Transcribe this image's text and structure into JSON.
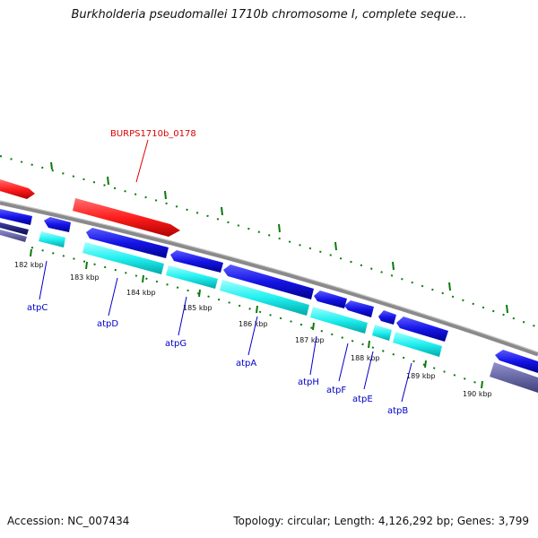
{
  "title": "Burkholderia pseudomallei 1710b chromosome I, complete seque...",
  "footer": {
    "accession": "Accession: NC_007434",
    "summary": "Topology: circular; Length: 4,126,292 bp; Genes: 3,799"
  },
  "kbp_labels": [
    "182 kbp",
    "183 kbp",
    "184 kbp",
    "185 kbp",
    "186 kbp",
    "187 kbp",
    "188 kbp",
    "189 kbp",
    "190 kbp"
  ],
  "red_label": "BURPS1710b_0178",
  "gene_labels": [
    "atpC",
    "atpD",
    "atpG",
    "atpA",
    "atpH",
    "atpF",
    "atpE",
    "atpB"
  ],
  "colors": {
    "backbone": "#8a8a8a",
    "cds_red": "#ff1e1e",
    "cds_blue": "#1414e6",
    "cds_cyan": "#22f0f0",
    "cds_navy": "#141478",
    "cds_slate": "#5555a0",
    "tick_green": "#0a7a0a",
    "gene_label": "#0000c8",
    "red_label": "#dd0000"
  }
}
